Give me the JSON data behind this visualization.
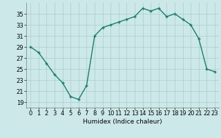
{
  "x": [
    0,
    1,
    2,
    3,
    4,
    5,
    6,
    7,
    8,
    9,
    10,
    11,
    12,
    13,
    14,
    15,
    16,
    17,
    18,
    19,
    20,
    21,
    22,
    23
  ],
  "y": [
    29,
    28,
    26,
    24,
    22.5,
    20,
    19.5,
    22,
    31,
    32.5,
    33,
    33.5,
    34,
    34.5,
    36,
    35.5,
    36,
    34.5,
    35,
    34,
    33,
    30.5,
    25,
    24.5
  ],
  "line_color": "#1a7a6e",
  "marker": "+",
  "marker_size": 3.5,
  "marker_lw": 1.0,
  "bg_color": "#cce8e8",
  "grid_color": "#aacccc",
  "xlabel": "Humidex (Indice chaleur)",
  "xlim": [
    -0.5,
    23.5
  ],
  "ylim": [
    18,
    37
  ],
  "yticks": [
    19,
    21,
    23,
    25,
    27,
    29,
    31,
    33,
    35
  ],
  "xticks": [
    0,
    1,
    2,
    3,
    4,
    5,
    6,
    7,
    8,
    9,
    10,
    11,
    12,
    13,
    14,
    15,
    16,
    17,
    18,
    19,
    20,
    21,
    22,
    23
  ],
  "xlabel_fontsize": 6.5,
  "tick_fontsize": 6.0,
  "linewidth": 1.0
}
